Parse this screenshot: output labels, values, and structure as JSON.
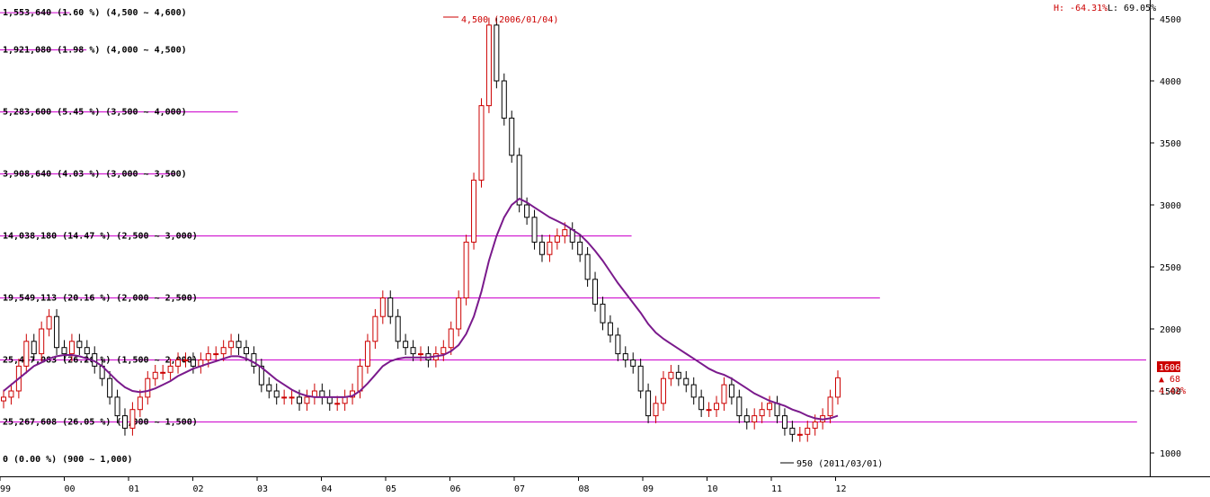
{
  "chart_data": {
    "type": "candlestick",
    "colors": {
      "up": "#cc0000",
      "down": "#000000",
      "ma": "#7a1a8c",
      "volume_bar": "#cc00cc",
      "highlight": "#cc0000"
    },
    "header": {
      "high_text": "H: -64.31%",
      "low_text": "L: 69.05%"
    },
    "y_axis": {
      "range": [
        900,
        4650
      ],
      "ticks": [
        "1000",
        "1500",
        "2000",
        "2500",
        "3000",
        "3500",
        "4000",
        "4500"
      ]
    },
    "x_axis": {
      "ticks": [
        "99",
        "00",
        "01",
        "02",
        "03",
        "04",
        "05",
        "06",
        "07",
        "08",
        "09",
        "10",
        "11",
        "12"
      ]
    },
    "price_volume": [
      {
        "label": "1,553,640 (1.60 %) (4,500 ~ 4,600)",
        "low": 4500,
        "high": 4600,
        "share": 1.6
      },
      {
        "label": "1,921,080 (1.98 %) (4,000 ~ 4,500)",
        "low": 4000,
        "high": 4500,
        "share": 1.98
      },
      {
        "label": "5,283,600 (5.45 %) (3,500 ~ 4,000)",
        "low": 3500,
        "high": 4000,
        "share": 5.45
      },
      {
        "label": "3,908,640 (4.03 %) (3,000 ~ 3,500)",
        "low": 3000,
        "high": 3500,
        "share": 4.03
      },
      {
        "label": "14,038,180 (14.47 %) (2,500 ~ 3,000)",
        "low": 2500,
        "high": 3000,
        "share": 14.47
      },
      {
        "label": "19,549,113 (20.16 %) (2,000 ~ 2,500)",
        "low": 2000,
        "high": 2500,
        "share": 20.16
      },
      {
        "label": "25,467,083 (26.26 %) (1,500 ~ 2,000)",
        "low": 1500,
        "high": 2000,
        "share": 26.26
      },
      {
        "label": "25,267,608 (26.05 %) (1,000 ~ 1,500)",
        "low": 1000,
        "high": 1500,
        "share": 26.05
      },
      {
        "label": "0 (0.00 %) (900 ~ 1,000)",
        "low": 900,
        "high": 1000,
        "share": 0.0
      }
    ],
    "annotations": {
      "high": {
        "text": "4,500 (2006/01/04)",
        "value": 4500
      },
      "low": {
        "text": "950 (2011/03/01)",
        "value": 950
      }
    },
    "last": {
      "price": "1606",
      "change": "▲ 68",
      "pct": "4.42%"
    },
    "closes": [
      1450,
      1500,
      1700,
      1900,
      1800,
      2000,
      2100,
      1850,
      1800,
      1900,
      1850,
      1800,
      1700,
      1600,
      1450,
      1300,
      1200,
      1350,
      1450,
      1600,
      1650,
      1650,
      1700,
      1750,
      1750,
      1700,
      1750,
      1800,
      1800,
      1850,
      1900,
      1850,
      1800,
      1700,
      1550,
      1500,
      1450,
      1450,
      1450,
      1400,
      1450,
      1500,
      1450,
      1400,
      1400,
      1450,
      1500,
      1700,
      1900,
      2100,
      2250,
      2100,
      1900,
      1850,
      1800,
      1800,
      1750,
      1800,
      1850,
      2000,
      2250,
      2700,
      3200,
      3800,
      4450,
      4000,
      3700,
      3400,
      3000,
      2900,
      2700,
      2600,
      2700,
      2750,
      2800,
      2700,
      2600,
      2400,
      2200,
      2050,
      1950,
      1800,
      1750,
      1700,
      1500,
      1300,
      1400,
      1600,
      1650,
      1600,
      1550,
      1450,
      1350,
      1350,
      1400,
      1550,
      1450,
      1300,
      1250,
      1300,
      1350,
      1400,
      1300,
      1200,
      1150,
      1150,
      1200,
      1250,
      1300,
      1450,
      1606
    ],
    "ma_values": [
      1500,
      1550,
      1600,
      1650,
      1700,
      1730,
      1760,
      1780,
      1790,
      1790,
      1780,
      1760,
      1740,
      1700,
      1640,
      1580,
      1530,
      1500,
      1490,
      1500,
      1520,
      1550,
      1580,
      1620,
      1650,
      1680,
      1700,
      1720,
      1740,
      1760,
      1780,
      1780,
      1760,
      1730,
      1690,
      1640,
      1590,
      1550,
      1510,
      1480,
      1460,
      1450,
      1450,
      1450,
      1450,
      1450,
      1460,
      1500,
      1560,
      1630,
      1700,
      1740,
      1760,
      1770,
      1770,
      1770,
      1770,
      1780,
      1790,
      1820,
      1870,
      1960,
      2100,
      2300,
      2550,
      2750,
      2900,
      3000,
      3050,
      3020,
      2980,
      2940,
      2900,
      2870,
      2840,
      2800,
      2760,
      2700,
      2630,
      2550,
      2460,
      2370,
      2290,
      2210,
      2130,
      2040,
      1970,
      1920,
      1880,
      1840,
      1800,
      1760,
      1720,
      1680,
      1650,
      1630,
      1600,
      1560,
      1520,
      1480,
      1450,
      1420,
      1400,
      1380,
      1350,
      1330,
      1300,
      1280,
      1270,
      1280,
      1300
    ]
  }
}
